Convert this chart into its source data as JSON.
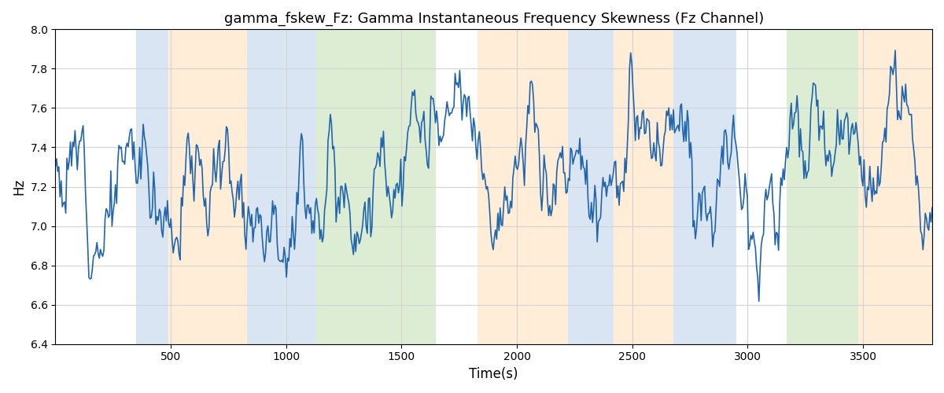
{
  "title": "gamma_fskew_Fz: Gamma Instantaneous Frequency Skewness (Fz Channel)",
  "xlabel": "Time(s)",
  "ylabel": "Hz",
  "ylim": [
    6.4,
    8.0
  ],
  "xlim": [
    0,
    3800
  ],
  "yticks": [
    6.4,
    6.6,
    6.8,
    7.0,
    7.2,
    7.4,
    7.6,
    7.8,
    8.0
  ],
  "xticks": [
    500,
    1000,
    1500,
    2000,
    2500,
    3000,
    3500
  ],
  "line_color": "#2166ac",
  "line_width": 1.2,
  "bg_color": "#ffffff",
  "bands": [
    {
      "xmin": 350,
      "xmax": 490,
      "color": "#aec6e8",
      "alpha": 0.45
    },
    {
      "xmin": 490,
      "xmax": 830,
      "color": "#ffd9a8",
      "alpha": 0.45
    },
    {
      "xmin": 830,
      "xmax": 1130,
      "color": "#aec6e8",
      "alpha": 0.45
    },
    {
      "xmin": 1130,
      "xmax": 1650,
      "color": "#b5d9a0",
      "alpha": 0.45
    },
    {
      "xmin": 1830,
      "xmax": 2220,
      "color": "#ffd9a8",
      "alpha": 0.45
    },
    {
      "xmin": 2220,
      "xmax": 2420,
      "color": "#aec6e8",
      "alpha": 0.45
    },
    {
      "xmin": 2420,
      "xmax": 2680,
      "color": "#ffd9a8",
      "alpha": 0.45
    },
    {
      "xmin": 2680,
      "xmax": 2950,
      "color": "#aec6e8",
      "alpha": 0.45
    },
    {
      "xmin": 3170,
      "xmax": 3480,
      "color": "#b5d9a0",
      "alpha": 0.45
    },
    {
      "xmin": 3480,
      "xmax": 3800,
      "color": "#ffd9a8",
      "alpha": 0.45
    }
  ],
  "seed": 12,
  "n_points": 760,
  "t_start": 0,
  "t_end": 3800,
  "mean": 7.3,
  "noise_std": 0.09,
  "ar_alpha": 0.91
}
